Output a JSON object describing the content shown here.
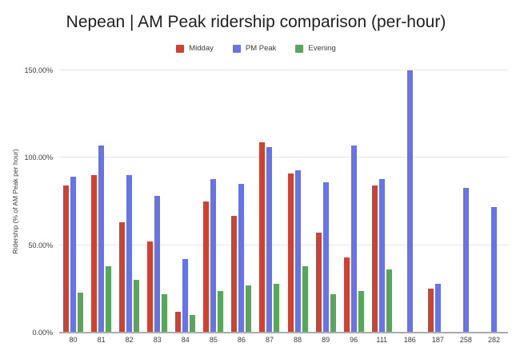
{
  "chart_data": {
    "type": "bar",
    "title": "Nepean | AM Peak ridership comparison (per-hour)",
    "ylabel": "Ridership (% of AM Peak per hour)",
    "xlabel": "",
    "legend_position": "top",
    "grid": true,
    "background_color": "#ffffff",
    "grid_color": "#e6e6e6",
    "axis_line_color": "#ababab",
    "text_color": "#3c3c3c",
    "title_color": "#1f1f1f",
    "ylim": [
      0,
      150
    ],
    "yticks": [
      {
        "value": 0,
        "label": "0.00%"
      },
      {
        "value": 50,
        "label": "50.00%"
      },
      {
        "value": 100,
        "label": "100.00%"
      },
      {
        "value": 150,
        "label": "150.00%"
      }
    ],
    "categories": [
      "80",
      "81",
      "82",
      "83",
      "84",
      "85",
      "86",
      "87",
      "88",
      "89",
      "96",
      "111",
      "186",
      "187",
      "258",
      "282"
    ],
    "series": [
      {
        "name": "Midday",
        "color": "#cf4232",
        "values": [
          84,
          90,
          63,
          52,
          12,
          75,
          67,
          109,
          91,
          57,
          43,
          84,
          null,
          25,
          null,
          null
        ]
      },
      {
        "name": "PM Peak",
        "color": "#6674e8",
        "values": [
          89,
          107,
          90,
          78,
          42,
          88,
          85,
          106,
          93,
          86,
          107,
          88,
          150,
          28,
          83,
          72
        ]
      },
      {
        "name": "Evening",
        "color": "#58a55c",
        "values": [
          23,
          38,
          30,
          22,
          10,
          24,
          27,
          28,
          38,
          22,
          24,
          36,
          null,
          null,
          null,
          null
        ]
      }
    ]
  }
}
